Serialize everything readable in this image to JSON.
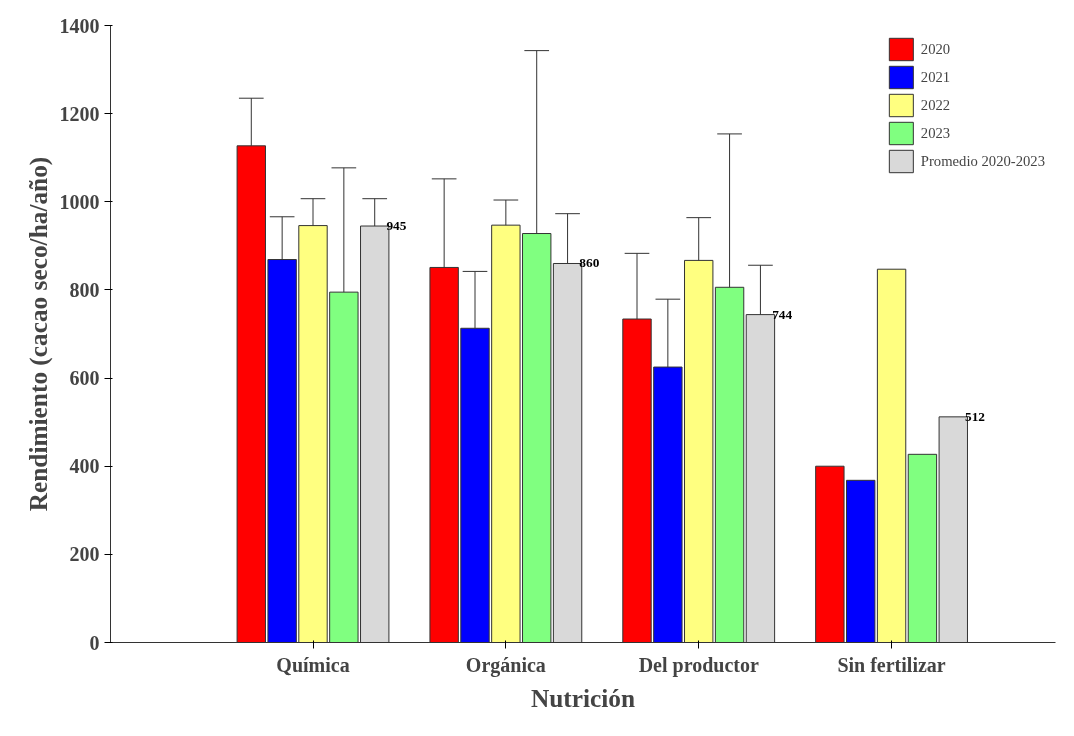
{
  "chart_data": {
    "type": "bar",
    "xlabel": "Nutrición",
    "ylabel": "Rendimiento (cacao seco/ha/año)",
    "categories": [
      "Química",
      "Orgánica",
      "Del productor",
      "Sin fertilizar"
    ],
    "series": [
      {
        "name": "2020",
        "color": "#ff0000",
        "values": [
          1127,
          851,
          734,
          400
        ],
        "errors": [
          [
            1127,
            1235
          ],
          [
            851,
            1052
          ],
          [
            734,
            883
          ],
          null
        ]
      },
      {
        "name": "2021",
        "color": "#0000ff",
        "values": [
          869,
          713,
          625,
          368
        ],
        "errors": [
          [
            869,
            966
          ],
          [
            713,
            842
          ],
          [
            625,
            779
          ],
          null
        ]
      },
      {
        "name": "2022",
        "color": "#ffff80",
        "values": [
          946,
          947,
          867,
          847
        ],
        "errors": [
          [
            946,
            1007
          ],
          [
            947,
            1004
          ],
          [
            867,
            964
          ],
          null
        ]
      },
      {
        "name": "2023",
        "color": "#80ff80",
        "values": [
          795,
          928,
          806,
          427
        ],
        "errors": [
          [
            795,
            1077
          ],
          [
            928,
            1343
          ],
          [
            806,
            1154
          ],
          null
        ]
      },
      {
        "name": "Promedio 2020-2023",
        "color": "#d9d9d9",
        "values": [
          945,
          860,
          744,
          512
        ],
        "errors": [
          [
            945,
            1007
          ],
          [
            860,
            973
          ],
          [
            744,
            856
          ],
          null
        ],
        "value_labels": [
          "945",
          "860",
          "744",
          "512"
        ]
      }
    ],
    "ylim": [
      0,
      1400
    ],
    "yticks": [
      0,
      200,
      400,
      600,
      800,
      1000,
      1200,
      1400
    ],
    "grid": false,
    "legend": "top right"
  }
}
